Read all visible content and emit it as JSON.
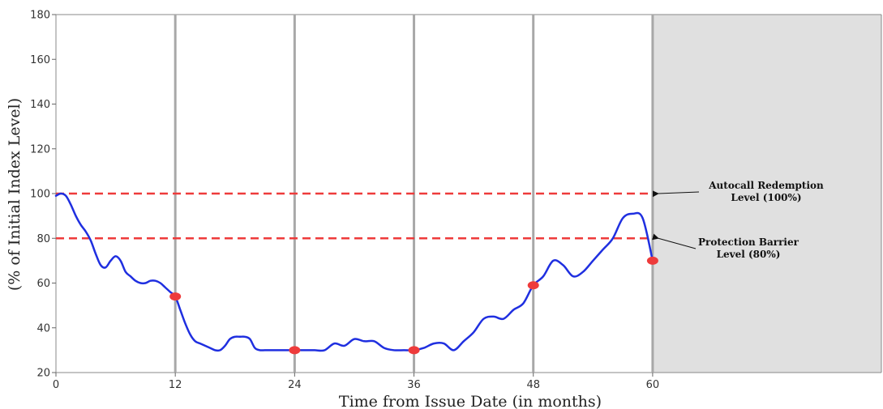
{
  "chart_data": {
    "type": "line",
    "xlabel": "Time from Issue Date (in months)",
    "ylabel": "(% of Initial Index Level)",
    "xlim": [
      0,
      83
    ],
    "ylim": [
      20,
      180
    ],
    "x_ticks": [
      0,
      12,
      24,
      36,
      48,
      60
    ],
    "y_ticks": [
      20,
      40,
      60,
      80,
      100,
      120,
      140,
      160,
      180
    ],
    "grid": false,
    "observation_dates": [
      12,
      24,
      36,
      48,
      60
    ],
    "shaded_region": {
      "x_start": 60,
      "x_end": 83,
      "color": "#e0e0e0"
    },
    "series": [
      {
        "color": "#1f2fe0",
        "x": [
          0,
          0.5,
          1,
          1.5,
          2,
          2.5,
          3,
          3.5,
          4,
          4.5,
          5,
          5.5,
          6,
          6.5,
          7,
          7.5,
          8,
          8.5,
          9,
          9.5,
          10,
          10.5,
          11,
          11.5,
          12,
          12.5,
          13,
          13.5,
          14,
          14.5,
          15,
          15.5,
          16,
          16.5,
          17,
          17.5,
          18,
          18.5,
          19,
          19.5,
          20,
          20.5,
          21,
          21.5,
          22,
          22.5,
          23,
          23.5,
          24,
          25,
          26,
          27,
          28,
          29,
          30,
          31,
          32,
          33,
          34,
          35,
          36,
          37,
          38,
          39,
          40,
          41,
          42,
          43,
          44,
          45,
          46,
          47,
          48,
          49,
          50,
          51,
          52,
          53,
          54,
          55,
          56,
          57,
          58,
          59,
          60
        ],
        "y": [
          99,
          100,
          99,
          95,
          90,
          86,
          83,
          79,
          73,
          68,
          67,
          70,
          72,
          70,
          65,
          63,
          61,
          60,
          60,
          61,
          61,
          60,
          58,
          56,
          54,
          48,
          42,
          37,
          34,
          33,
          32,
          31,
          30,
          30,
          32,
          35,
          36,
          36,
          36,
          35,
          31,
          30,
          30,
          30,
          30,
          30,
          30,
          30,
          30,
          30,
          30,
          30,
          33,
          32,
          35,
          34,
          34,
          31,
          30,
          30,
          30,
          31,
          33,
          33,
          30,
          34,
          38,
          44,
          45,
          44,
          48,
          51,
          59,
          63,
          70,
          68,
          63,
          65,
          70,
          75,
          80,
          89,
          91,
          89,
          70
        ]
      }
    ],
    "markers": [
      {
        "x": 12,
        "y": 54,
        "color": "#ee3b3b"
      },
      {
        "x": 24,
        "y": 30,
        "color": "#ee3b3b"
      },
      {
        "x": 36,
        "y": 30,
        "color": "#ee3b3b"
      },
      {
        "x": 48,
        "y": 59,
        "color": "#ee3b3b"
      },
      {
        "x": 60,
        "y": 70,
        "color": "#ee3b3b"
      }
    ],
    "reference_lines": [
      {
        "y": 100,
        "color": "#ee3b3b",
        "style": "dashed"
      },
      {
        "y": 80,
        "color": "#ee3b3b",
        "style": "dashed"
      }
    ],
    "annotations": [
      {
        "points_to_y": 100,
        "lines": [
          "Autocall Redemption",
          "Level (100%)"
        ]
      },
      {
        "points_to_y": 80,
        "lines": [
          "Protection Barrier",
          "Level (80%)"
        ]
      }
    ]
  }
}
